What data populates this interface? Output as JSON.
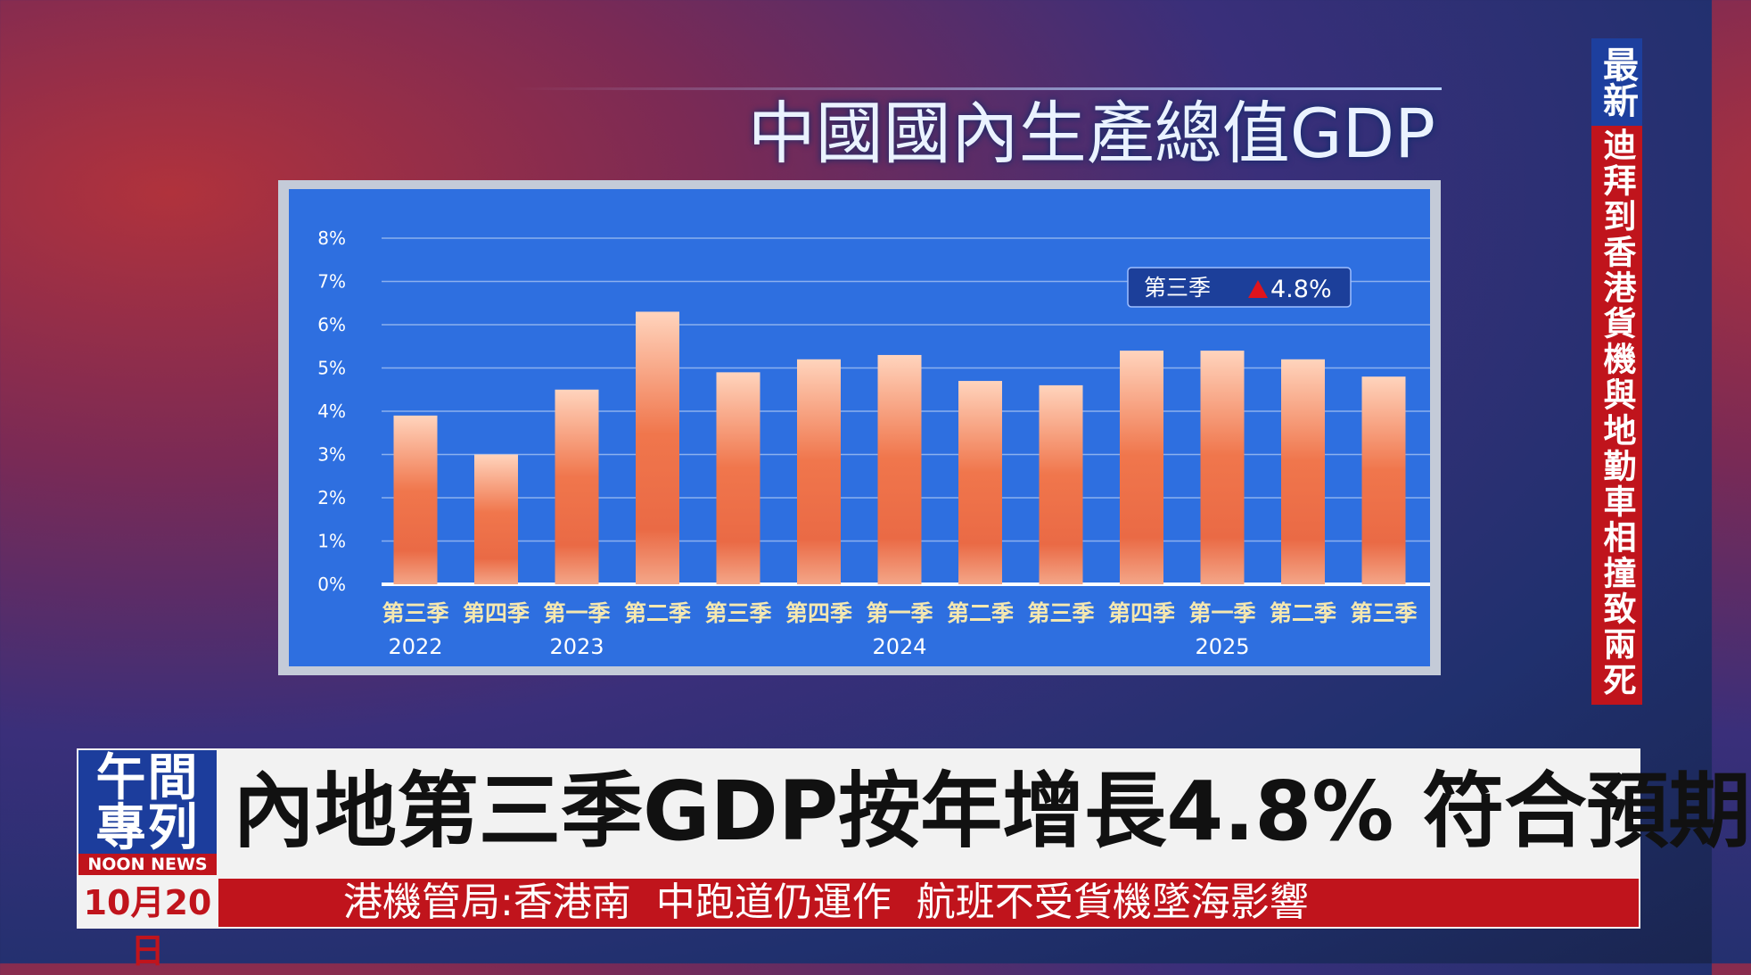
{
  "chart_data": {
    "type": "bar",
    "title": "中國國內生產總值GDP",
    "categories": [
      "第三季",
      "第四季",
      "第一季",
      "第二季",
      "第三季",
      "第四季",
      "第一季",
      "第二季",
      "第三季",
      "第四季",
      "第一季",
      "第二季",
      "第三季"
    ],
    "category_years": [
      "2022",
      null,
      "2023",
      null,
      null,
      null,
      "2024",
      null,
      null,
      null,
      "2025",
      null,
      null
    ],
    "values": [
      3.9,
      3.0,
      4.5,
      6.3,
      4.9,
      5.2,
      5.3,
      4.7,
      4.6,
      5.4,
      5.4,
      5.2,
      4.8
    ],
    "ylim": [
      0,
      8
    ],
    "yticks": [
      {
        "value": 0,
        "label": "0%"
      },
      {
        "value": 1,
        "label": "1%"
      },
      {
        "value": 2,
        "label": "2%"
      },
      {
        "value": 3,
        "label": "3%"
      },
      {
        "value": 4,
        "label": "4%"
      },
      {
        "value": 5,
        "label": "5%"
      },
      {
        "value": 6,
        "label": "6%"
      },
      {
        "value": 7,
        "label": "7%"
      },
      {
        "value": 8,
        "label": "8%"
      }
    ],
    "grid": true,
    "annotation": {
      "text": "第三季",
      "value_label": "4.8%"
    }
  },
  "ticker": {
    "tag": "最新",
    "text": "迪拜到香港貨機與地勤車相撞致兩死"
  },
  "program": {
    "name": "午間專列",
    "name_en": "NOON NEWS",
    "date": "10月20日"
  },
  "headline": "內地第三季GDP按年增長4.8% 符合預期",
  "subline": "港機管局:香港南  中跑道仍運作  航班不受貨機墜海影響"
}
